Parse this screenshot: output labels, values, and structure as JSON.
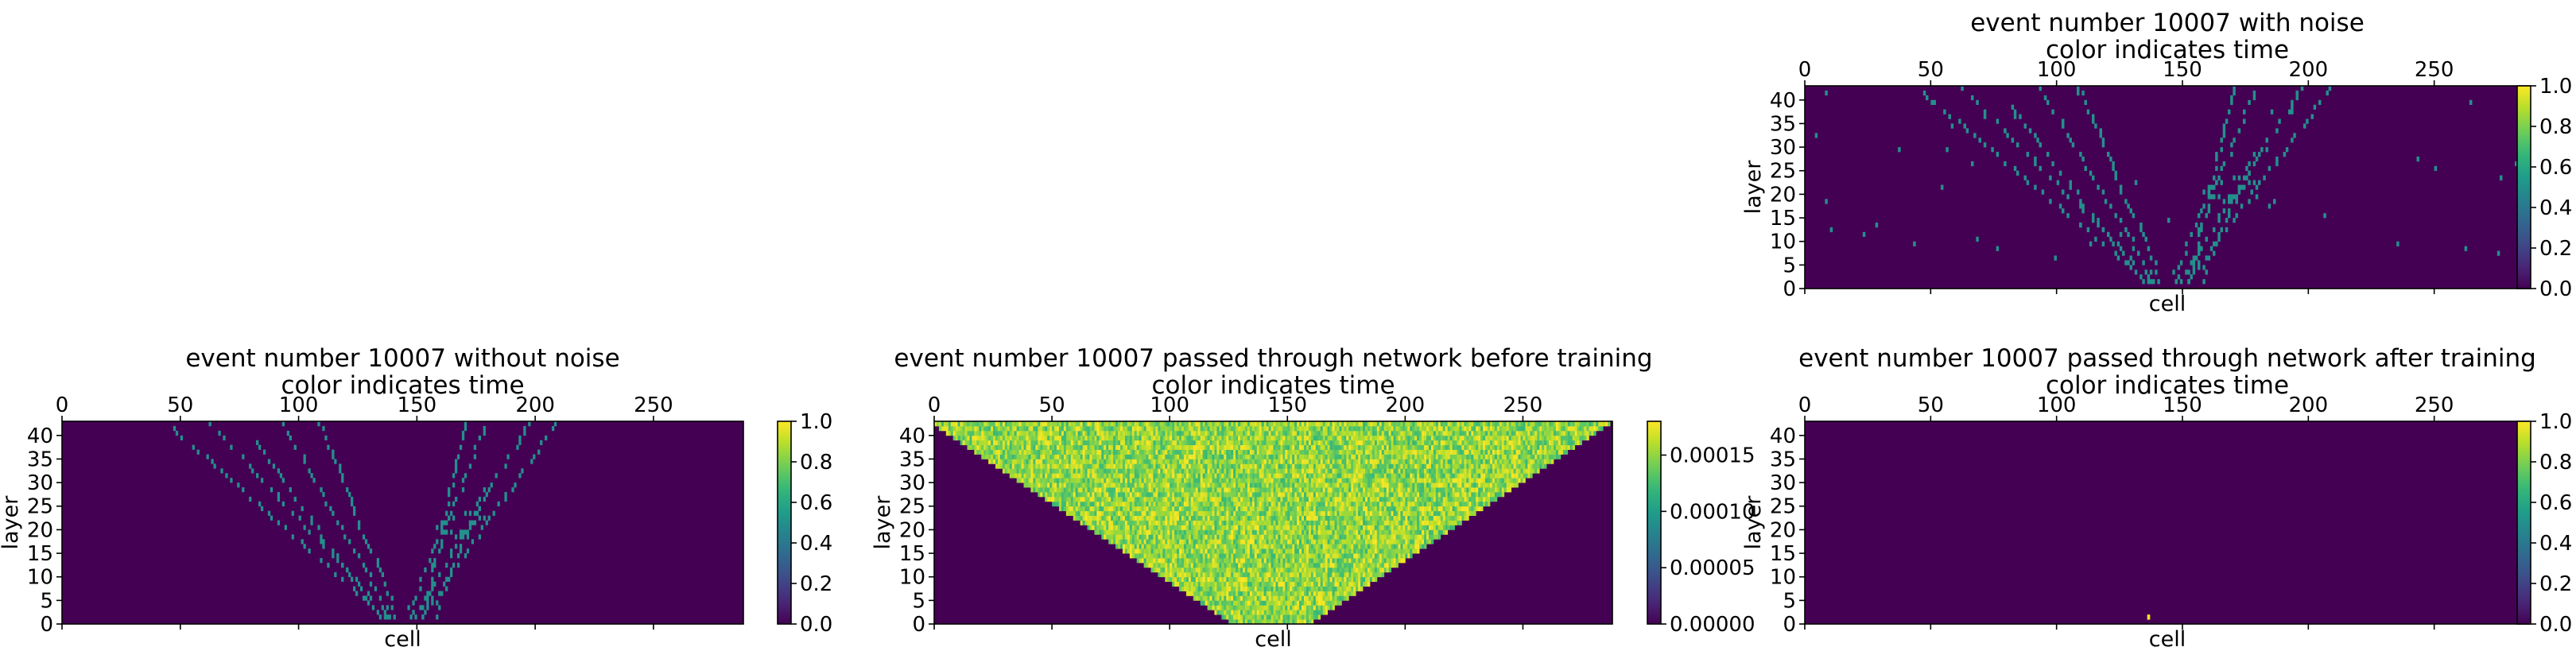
{
  "chart_data": [
    {
      "id": "with_noise",
      "type": "heatmap",
      "title": "event number 10007 with noise",
      "subtitle": "color indicates time",
      "xlabel": "cell",
      "ylabel": "layer",
      "x_range": [
        0,
        288
      ],
      "y_range": [
        0,
        43
      ],
      "x_ticks": [
        0,
        50,
        100,
        150,
        200,
        250
      ],
      "y_ticks": [
        0,
        5,
        10,
        15,
        20,
        25,
        30,
        35,
        40
      ],
      "colorbar": {
        "ticks": [
          "0.0",
          "0.2",
          "0.4",
          "0.6",
          "0.8",
          "1.0"
        ],
        "range": [
          0,
          1
        ]
      },
      "colormap": "viridis",
      "background_value": 0.0,
      "hit_value": 0.5,
      "pattern": "sparse-tracks-with-noise",
      "seed": 7
    },
    {
      "id": "without_noise",
      "type": "heatmap",
      "title": "event number 10007 without noise",
      "subtitle": "color indicates time",
      "xlabel": "cell",
      "ylabel": "layer",
      "x_range": [
        0,
        288
      ],
      "y_range": [
        0,
        43
      ],
      "x_ticks": [
        0,
        50,
        100,
        150,
        200,
        250
      ],
      "y_ticks": [
        0,
        5,
        10,
        15,
        20,
        25,
        30,
        35,
        40
      ],
      "colorbar": {
        "ticks": [
          "0.0",
          "0.2",
          "0.4",
          "0.6",
          "0.8",
          "1.0"
        ],
        "range": [
          0,
          1
        ]
      },
      "colormap": "viridis",
      "background_value": 0.0,
      "hit_value": 0.5,
      "pattern": "sparse-tracks",
      "seed": 7
    },
    {
      "id": "before_training",
      "type": "heatmap",
      "title": "event number 10007 passed through network before training",
      "subtitle": "color indicates time",
      "xlabel": "cell",
      "ylabel": "layer",
      "x_range": [
        0,
        288
      ],
      "y_range": [
        0,
        43
      ],
      "x_ticks": [
        0,
        50,
        100,
        150,
        200,
        250
      ],
      "y_ticks": [
        0,
        5,
        10,
        15,
        20,
        25,
        30,
        35,
        40
      ],
      "colorbar": {
        "ticks": [
          "0.00000",
          "0.00005",
          "0.00010",
          "0.00015"
        ],
        "range": [
          0,
          0.00018
        ]
      },
      "colormap": "viridis",
      "background_value": 0.0,
      "pattern": "noisy-triangle",
      "value_range_inside": [
        0.00012,
        0.00018
      ],
      "seed": 11
    },
    {
      "id": "after_training",
      "type": "heatmap",
      "title": "event number 10007 passed through network after training",
      "subtitle": "color indicates time",
      "xlabel": "cell",
      "ylabel": "layer",
      "x_range": [
        0,
        288
      ],
      "y_range": [
        0,
        43
      ],
      "x_ticks": [
        0,
        50,
        100,
        150,
        200,
        250
      ],
      "y_ticks": [
        0,
        5,
        10,
        15,
        20,
        25,
        30,
        35,
        40
      ],
      "colorbar": {
        "ticks": [
          "0.0",
          "0.2",
          "0.4",
          "0.6",
          "0.8",
          "1.0"
        ],
        "range": [
          0,
          1
        ]
      },
      "colormap": "viridis",
      "background_value": 0.0,
      "pattern": "single-hit",
      "hits": [
        {
          "cell": 136,
          "layer": 1,
          "value": 1.0
        }
      ]
    }
  ]
}
